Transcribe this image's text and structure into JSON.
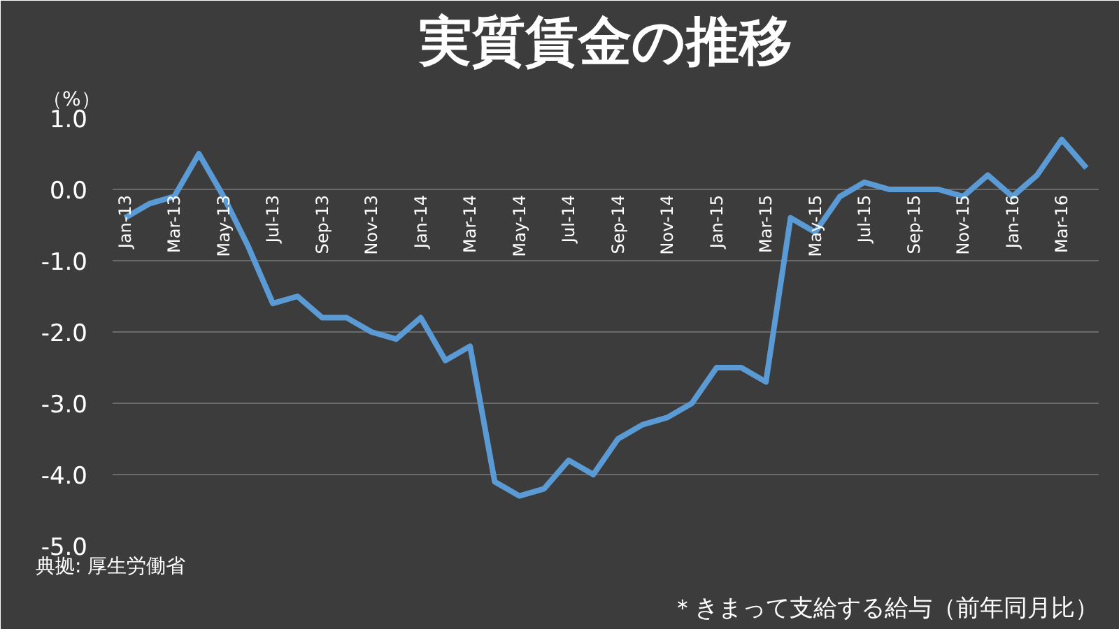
{
  "chart_data": {
    "type": "line",
    "title": "実質賃金の推移",
    "ylabel": "（%）",
    "categories": [
      "Jan-13",
      null,
      "Mar-13",
      null,
      "May-13",
      null,
      "Jul-13",
      null,
      "Sep-13",
      null,
      "Nov-13",
      null,
      "Jan-14",
      null,
      "Mar-14",
      null,
      "May-14",
      null,
      "Jul-14",
      null,
      "Sep-14",
      null,
      "Nov-14",
      null,
      "Jan-15",
      null,
      "Mar-15",
      null,
      "May-15",
      null,
      "Jul-15",
      null,
      "Sep-15",
      null,
      "Nov-15",
      null,
      "Jan-16",
      null,
      "Mar-16",
      null
    ],
    "series": [
      {
        "color": "#5b9bd5",
        "values": [
          -0.4,
          -0.2,
          -0.1,
          0.5,
          -0.1,
          -0.8,
          -1.6,
          -1.5,
          -1.8,
          -1.8,
          -2.0,
          -2.1,
          -1.8,
          -2.4,
          -2.2,
          -4.1,
          -4.3,
          -4.2,
          -3.8,
          -4.0,
          -3.5,
          -3.3,
          -3.2,
          -3.0,
          -2.5,
          -2.5,
          -2.7,
          -0.4,
          -0.6,
          -0.1,
          0.1,
          0.0,
          0.0,
          0.0,
          -0.1,
          0.2,
          -0.1,
          0.2,
          0.7,
          0.3
        ]
      }
    ],
    "ylim": [
      -5,
      1
    ],
    "yticks": [
      {
        "value": 1,
        "label": "1.0"
      },
      {
        "value": 0,
        "label": "0.0"
      },
      {
        "value": -1,
        "label": "-1.0"
      },
      {
        "value": -2,
        "label": "-2.0"
      },
      {
        "value": -3,
        "label": "-3.0"
      },
      {
        "value": -4,
        "label": "-4.0"
      },
      {
        "value": -5,
        "label": "-5.0"
      }
    ],
    "grid": "y",
    "marker": "none",
    "line_style": "solid",
    "annotations": [
      "典拠: 厚生労働省",
      "＊きまって支給する給与（前年同月比）"
    ]
  }
}
